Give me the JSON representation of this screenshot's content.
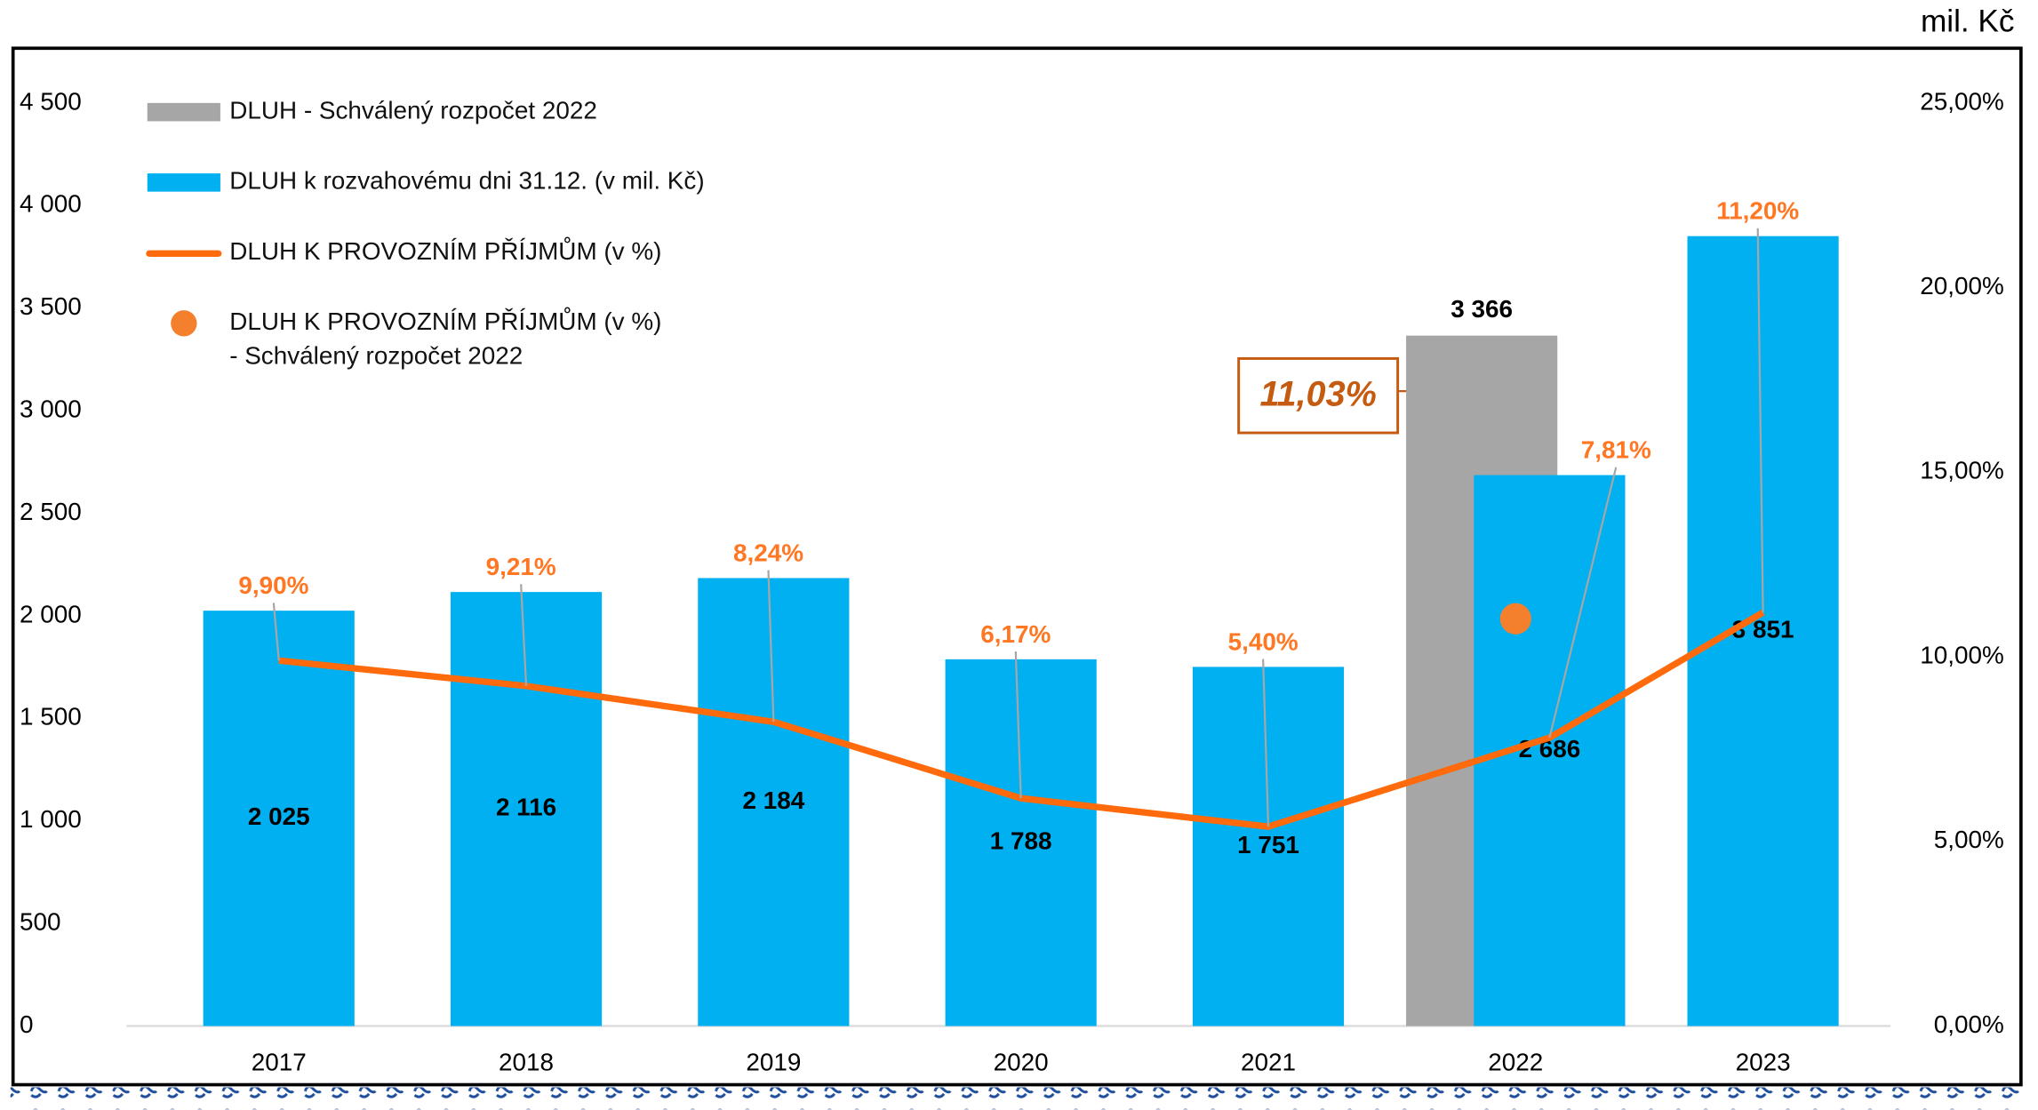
{
  "chart_data": {
    "type": "bar",
    "unit_label": "mil. Kč",
    "categories": [
      "2017",
      "2018",
      "2019",
      "2020",
      "2021",
      "2022",
      "2023"
    ],
    "series": [
      {
        "name": "DLUH - Schválený rozpočet 2022",
        "type": "bar",
        "color": "#a6a6a6",
        "values": [
          null,
          null,
          null,
          null,
          null,
          3366,
          null
        ],
        "value_labels": [
          null,
          null,
          null,
          null,
          null,
          "3 366",
          null
        ]
      },
      {
        "name": "DLUH k rozvahovému dni 31.12. (v mil. Kč)",
        "type": "bar",
        "color": "#00b0f0",
        "values": [
          2025,
          2116,
          2184,
          1788,
          1751,
          2686,
          3851
        ],
        "value_labels": [
          "2 025",
          "2 116",
          "2 184",
          "1 788",
          "1 751",
          "2 686",
          "3 851"
        ]
      },
      {
        "name": "DLUH K PROVOZNÍM PŘÍJMŮM (v %)",
        "type": "line",
        "axis": "y2",
        "color": "#ff6a0d",
        "values": [
          9.9,
          9.21,
          8.24,
          6.17,
          5.4,
          7.81,
          11.2
        ],
        "value_labels": [
          "9,90%",
          "9,21%",
          "8,24%",
          "6,17%",
          "5,40%",
          "7,81%",
          "11,20%"
        ]
      },
      {
        "name": "DLUH K PROVOZNÍM PŘÍJMŮM (v %)\n- Schválený rozpočet 2022",
        "type": "scatter",
        "axis": "y2",
        "color": "#f4802e",
        "values": [
          null,
          null,
          null,
          null,
          null,
          11.03,
          null
        ],
        "value_labels": [
          null,
          null,
          null,
          null,
          null,
          "11,03%",
          null
        ]
      }
    ],
    "ylim": [
      0,
      4500
    ],
    "yticks": [
      0,
      500,
      {
        "value": 1000,
        "label": "1 000"
      },
      {
        "value": 1500,
        "label": "1 500"
      },
      {
        "value": 2000,
        "label": "2 000"
      },
      {
        "value": 2500,
        "label": "2 500"
      },
      {
        "value": 3000,
        "label": "3 000"
      },
      {
        "value": 3500,
        "label": "3 500"
      },
      {
        "value": 4000,
        "label": "4 000"
      },
      {
        "value": 4500,
        "label": "4 500"
      }
    ],
    "y2lim": [
      0,
      25
    ],
    "y2ticks": [
      {
        "value": 0,
        "label": "0,00%"
      },
      {
        "value": 5,
        "label": "5,00%"
      },
      {
        "value": 10,
        "label": "10,00%"
      },
      {
        "value": 15,
        "label": "15,00%"
      },
      {
        "value": 20,
        "label": "20,00%"
      },
      {
        "value": 25,
        "label": "25,00%"
      }
    ],
    "grid": false,
    "legend": "top-left"
  }
}
